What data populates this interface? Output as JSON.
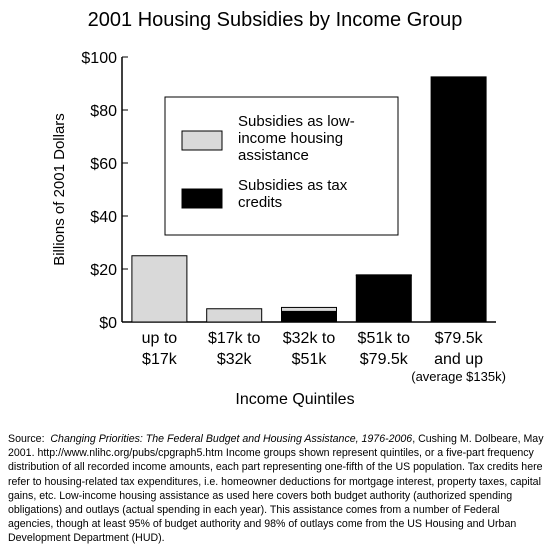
{
  "chart_data": {
    "type": "bar",
    "stacked": true,
    "title": "2001 Housing Subsidies by Income Group",
    "xlabel": "Income Quintiles",
    "ylabel": "Billions of 2001 Dollars",
    "ylim": [
      0,
      100
    ],
    "yticks": [
      0,
      20,
      40,
      60,
      80,
      100
    ],
    "ytick_labels": [
      "$0",
      "$20",
      "$40",
      "$60",
      "$80",
      "$100"
    ],
    "categories": [
      [
        "up to",
        "$17k"
      ],
      [
        "$17k to",
        "$32k"
      ],
      [
        "$32k to",
        "$51k"
      ],
      [
        "$51k to",
        "$79.5k"
      ],
      [
        "$79.5k",
        "and up"
      ]
    ],
    "category_notes": [
      "",
      "",
      "",
      "",
      "(average $135k)"
    ],
    "series": [
      {
        "name": "Subsidies as tax credits",
        "color": "#000000",
        "values": [
          0,
          0,
          4,
          17.5,
          92.5
        ]
      },
      {
        "name": "Subsidies as low-income housing assistance",
        "color": "#d9d9d9",
        "values": [
          25,
          5,
          1.5,
          0.3,
          0
        ]
      }
    ],
    "legend": {
      "placement": "upper-center",
      "items": [
        {
          "lines": [
            "Subsidies as low-",
            "income housing",
            "assistance"
          ],
          "color": "#d9d9d9"
        },
        {
          "lines": [
            "Subsidies as tax",
            "credits"
          ],
          "color": "#000000"
        }
      ]
    },
    "grid": false
  },
  "source": {
    "label": "Source:",
    "title": "Changing Priorities: The Federal Budget and Housing Assistance, 1976-2006",
    "text": ", Cushing M. Dolbeare, May 2001. http://www.nlihc.org/pubs/cpgraph5.htm  Income groups shown represent quintiles, or a five-part frequency distribution of all recorded income amounts, each part representing one-fifth of the US population.  Tax credits here refer to housing-related tax expenditures, i.e. homeowner deductions for mortgage interest, property taxes, capital gains, etc.  Low-income housing assistance as used here covers both budget authority (authorized spending obligations) and outlays (actual spending in each year).  This assistance comes from a number of Federal agencies, though at least 95% of budget authority and 98% of outlays come from the US Housing and Urban Development Department (HUD)."
  }
}
